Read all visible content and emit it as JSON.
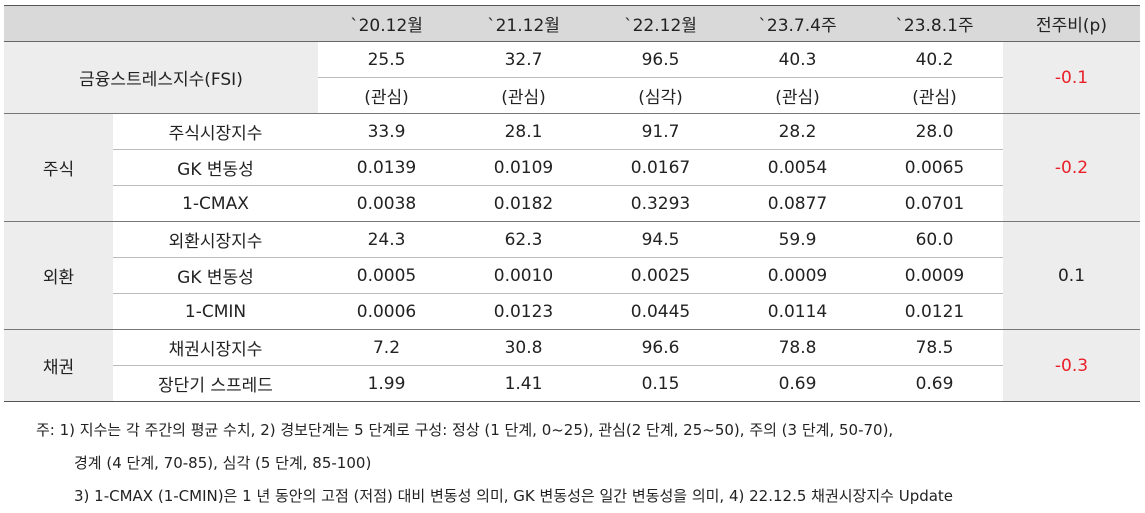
{
  "header": {
    "corner": "",
    "cols": [
      "`20.12월",
      "`21.12월",
      "`22.12월",
      "`23.7.4주",
      "`23.8.1주",
      "전주비(p)"
    ]
  },
  "fsi": {
    "label": "금융스트레스지수(FSI)",
    "values": [
      "25.5",
      "32.7",
      "96.5",
      "40.3",
      "40.2"
    ],
    "levels": [
      "(관심)",
      "(관심)",
      "(심각)",
      "(관심)",
      "(관심)"
    ],
    "change": "-0.1"
  },
  "groups": [
    {
      "name": "주식",
      "change": "-0.2",
      "rows": [
        {
          "label": "주식시장지수",
          "values": [
            "33.9",
            "28.1",
            "91.7",
            "28.2",
            "28.0"
          ]
        },
        {
          "label": "GK 변동성",
          "values": [
            "0.0139",
            "0.0109",
            "0.0167",
            "0.0054",
            "0.0065"
          ]
        },
        {
          "label": "1-CMAX",
          "values": [
            "0.0038",
            "0.0182",
            "0.3293",
            "0.0877",
            "0.0701"
          ]
        }
      ]
    },
    {
      "name": "외환",
      "change": "0.1",
      "rows": [
        {
          "label": "외환시장지수",
          "values": [
            "24.3",
            "62.3",
            "94.5",
            "59.9",
            "60.0"
          ]
        },
        {
          "label": "GK 변동성",
          "values": [
            "0.0005",
            "0.0010",
            "0.0025",
            "0.0009",
            "0.0009"
          ]
        },
        {
          "label": "1-CMIN",
          "values": [
            "0.0006",
            "0.0123",
            "0.0445",
            "0.0114",
            "0.0121"
          ]
        }
      ]
    },
    {
      "name": "채권",
      "change": "-0.3",
      "rows": [
        {
          "label": "채권시장지수",
          "values": [
            "7.2",
            "30.8",
            "96.6",
            "78.8",
            "78.5"
          ]
        },
        {
          "label": "장단기 스프레드",
          "values": [
            "1.99",
            "1.41",
            "0.15",
            "0.69",
            "0.69"
          ]
        }
      ]
    }
  ],
  "notes": {
    "line1": "주: 1) 지수는 각 주간의 평균 수치, 2) 경보단계는 5 단계로 구성: 정상 (1 단계, 0~25), 관심(2 단계, 25~50), 주의 (3 단계, 50-70),",
    "line2": "경계 (4 단계, 70-85), 심각 (5 단계, 85-100)",
    "line3": "3) 1-CMAX (1-CMIN)은 1 년 동안의 고점 (저점) 대비 변동성 의미, GK 변동성은 일간 변동성을 의미, 4) 22.12.5 채권시장지수 Update"
  },
  "colors": {
    "negative": "#e8202a",
    "header_bg": "#d9d9d9",
    "category_bg": "#ededed"
  }
}
